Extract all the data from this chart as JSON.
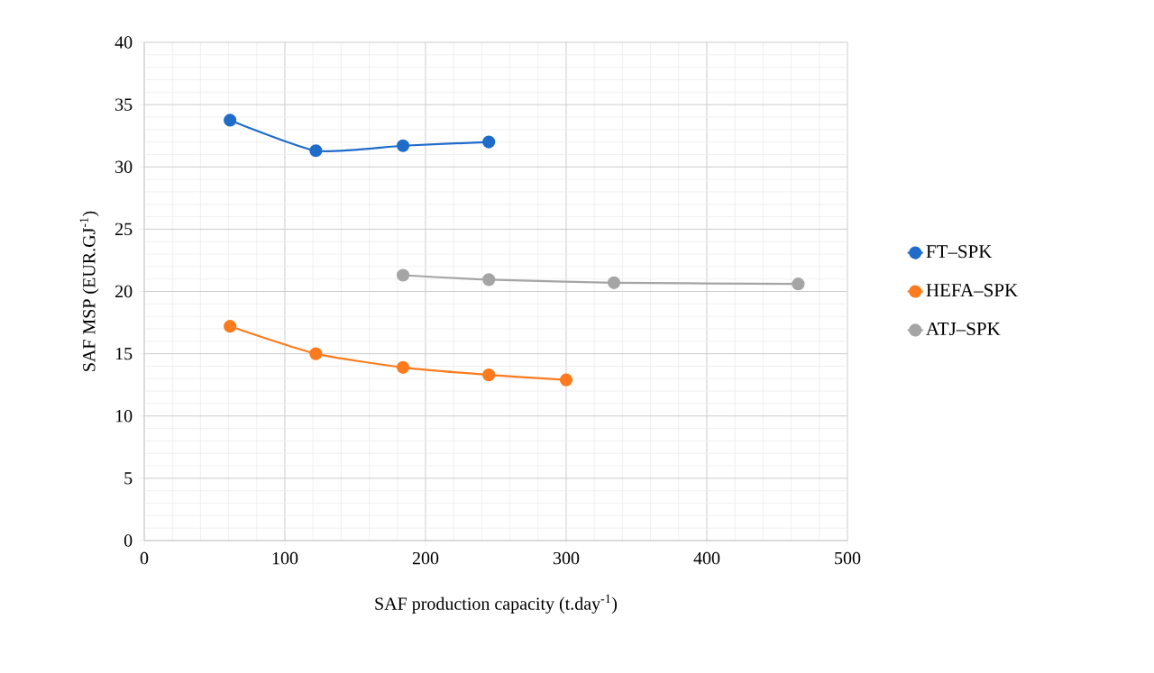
{
  "chart_data": {
    "type": "line",
    "xlabel": "SAF production  capacity (t.day$^{-1}$)",
    "ylabel": "SAF MSP (EUR.GJ$^{-1}$)",
    "xlim": [
      0,
      500
    ],
    "xticks": [
      0,
      100,
      200,
      300,
      400,
      500
    ],
    "ylim": [
      0,
      40
    ],
    "yticks": [
      0,
      5,
      10,
      15,
      20,
      25,
      30,
      35,
      40
    ],
    "grid": true,
    "legend": "right",
    "marker": "circle",
    "series": [
      {
        "name": "FT–SPK",
        "color": "#1f6cc9",
        "x": [
          61,
          122,
          184,
          245
        ],
        "values": [
          33.75,
          31.3,
          31.7,
          32.0
        ]
      },
      {
        "name": "HEFA–SPK",
        "color": "#fb7b1e",
        "x": [
          61,
          122,
          184,
          245,
          300
        ],
        "values": [
          17.2,
          15.0,
          13.9,
          13.3,
          12.9
        ]
      },
      {
        "name": "ATJ–SPK",
        "color": "#a5a5a5",
        "x": [
          184,
          245,
          334,
          465
        ],
        "values": [
          21.3,
          20.95,
          20.7,
          20.6
        ]
      }
    ]
  }
}
